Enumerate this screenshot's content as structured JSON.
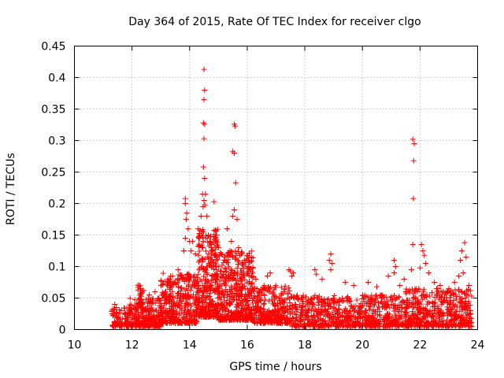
{
  "chart_data": {
    "type": "scatter",
    "title": "Day 364 of 2015, Rate Of TEC Index for receiver clgo",
    "xlabel": "GPS time / hours",
    "ylabel": "ROTI / TECUs",
    "xlim": [
      10,
      24
    ],
    "ylim": [
      0,
      0.45
    ],
    "x_ticks": [
      10,
      12,
      14,
      16,
      18,
      20,
      22,
      24
    ],
    "x_tick_labels": [
      "10",
      "12",
      "14",
      "16",
      "18",
      "20",
      "22",
      "24"
    ],
    "y_ticks": [
      0,
      0.05,
      0.1,
      0.15,
      0.2,
      0.25,
      0.3,
      0.35,
      0.4,
      0.45
    ],
    "y_tick_labels": [
      "0",
      "0.05",
      "0.1",
      "0.15",
      "0.2",
      "0.25",
      "0.3",
      "0.35",
      "0.4",
      "0.45"
    ],
    "grid": true,
    "marker": "+",
    "color": "#ff0000",
    "series": [
      {
        "name": "ROTI",
        "points": [
          [
            14.5,
            0.413
          ],
          [
            14.52,
            0.38
          ],
          [
            14.5,
            0.365
          ],
          [
            14.48,
            0.328
          ],
          [
            14.52,
            0.326
          ],
          [
            14.5,
            0.303
          ],
          [
            14.48,
            0.258
          ],
          [
            14.52,
            0.24
          ],
          [
            14.55,
            0.215
          ],
          [
            14.45,
            0.215
          ],
          [
            14.5,
            0.205
          ],
          [
            14.53,
            0.198
          ],
          [
            14.47,
            0.195
          ],
          [
            15.55,
            0.326
          ],
          [
            15.58,
            0.323
          ],
          [
            15.5,
            0.283
          ],
          [
            15.55,
            0.28
          ],
          [
            15.6,
            0.233
          ],
          [
            15.55,
            0.19
          ],
          [
            15.5,
            0.18
          ],
          [
            15.3,
            0.16
          ],
          [
            15.65,
            0.175
          ],
          [
            14.85,
            0.203
          ],
          [
            13.85,
            0.208
          ],
          [
            13.85,
            0.2
          ],
          [
            13.9,
            0.185
          ],
          [
            13.88,
            0.175
          ],
          [
            13.95,
            0.16
          ],
          [
            13.85,
            0.145
          ],
          [
            13.8,
            0.125
          ],
          [
            14.0,
            0.14
          ],
          [
            14.1,
            0.14
          ],
          [
            14.05,
            0.125
          ],
          [
            14.2,
            0.12
          ],
          [
            14.3,
            0.16
          ],
          [
            14.35,
            0.15
          ],
          [
            14.4,
            0.18
          ],
          [
            14.6,
            0.18
          ],
          [
            14.65,
            0.15
          ],
          [
            14.7,
            0.14
          ],
          [
            14.75,
            0.13
          ],
          [
            14.8,
            0.125
          ],
          [
            14.9,
            0.14
          ],
          [
            15.0,
            0.13
          ],
          [
            15.1,
            0.12
          ],
          [
            15.2,
            0.11
          ],
          [
            15.4,
            0.125
          ],
          [
            15.45,
            0.14
          ],
          [
            15.7,
            0.13
          ],
          [
            15.8,
            0.12
          ],
          [
            15.9,
            0.11
          ],
          [
            16.1,
            0.095
          ],
          [
            16.15,
            0.085
          ],
          [
            16.3,
            0.08
          ],
          [
            16.7,
            0.085
          ],
          [
            16.8,
            0.09
          ],
          [
            17.45,
            0.095
          ],
          [
            17.5,
            0.093
          ],
          [
            17.6,
            0.09
          ],
          [
            17.55,
            0.085
          ],
          [
            18.35,
            0.095
          ],
          [
            18.9,
            0.12
          ],
          [
            18.85,
            0.11
          ],
          [
            18.95,
            0.105
          ],
          [
            18.9,
            0.095
          ],
          [
            18.4,
            0.088
          ],
          [
            18.6,
            0.08
          ],
          [
            19.4,
            0.075
          ],
          [
            19.7,
            0.07
          ],
          [
            20.2,
            0.075
          ],
          [
            20.5,
            0.068
          ],
          [
            20.9,
            0.085
          ],
          [
            21.1,
            0.11
          ],
          [
            21.15,
            0.1
          ],
          [
            21.1,
            0.09
          ],
          [
            21.3,
            0.07
          ],
          [
            21.45,
            0.08
          ],
          [
            21.7,
            0.095
          ],
          [
            21.75,
            0.302
          ],
          [
            21.8,
            0.295
          ],
          [
            21.78,
            0.268
          ],
          [
            21.77,
            0.208
          ],
          [
            21.75,
            0.135
          ],
          [
            22.05,
            0.135
          ],
          [
            22.1,
            0.125
          ],
          [
            22.15,
            0.118
          ],
          [
            22.2,
            0.105
          ],
          [
            22.0,
            0.098
          ],
          [
            22.3,
            0.09
          ],
          [
            22.5,
            0.075
          ],
          [
            22.7,
            0.07
          ],
          [
            23.0,
            0.065
          ],
          [
            23.2,
            0.075
          ],
          [
            23.35,
            0.085
          ],
          [
            23.4,
            0.11
          ],
          [
            23.45,
            0.125
          ],
          [
            23.55,
            0.138
          ],
          [
            23.6,
            0.115
          ],
          [
            23.5,
            0.09
          ],
          [
            23.7,
            0.07
          ],
          [
            11.4,
            0.04
          ],
          [
            11.45,
            0.035
          ],
          [
            12.25,
            0.07
          ],
          [
            12.3,
            0.065
          ],
          [
            12.35,
            0.06
          ],
          [
            12.6,
            0.055
          ],
          [
            12.8,
            0.06
          ],
          [
            13.1,
            0.055
          ],
          [
            13.3,
            0.07
          ],
          [
            13.5,
            0.075
          ],
          [
            13.6,
            0.095
          ],
          [
            13.7,
            0.085
          ]
        ]
      }
    ],
    "bulk_clusters": [
      {
        "x_range": [
          11.3,
          11.9
        ],
        "y_range": [
          0.005,
          0.035
        ],
        "count": 90
      },
      {
        "x_range": [
          11.9,
          13.0
        ],
        "y_range": [
          0.005,
          0.05
        ],
        "count": 260
      },
      {
        "x_range": [
          12.2,
          12.4
        ],
        "y_range": [
          0.04,
          0.072
        ],
        "count": 25
      },
      {
        "x_range": [
          13.0,
          14.3
        ],
        "y_range": [
          0.01,
          0.09
        ],
        "count": 380
      },
      {
        "x_range": [
          14.3,
          15.0
        ],
        "y_range": [
          0.02,
          0.16
        ],
        "count": 320
      },
      {
        "x_range": [
          15.0,
          16.2
        ],
        "y_range": [
          0.015,
          0.125
        ],
        "count": 460
      },
      {
        "x_range": [
          16.2,
          17.5
        ],
        "y_range": [
          0.01,
          0.07
        ],
        "count": 300
      },
      {
        "x_range": [
          17.5,
          19.5
        ],
        "y_range": [
          0.005,
          0.055
        ],
        "count": 360
      },
      {
        "x_range": [
          19.5,
          21.5
        ],
        "y_range": [
          0.005,
          0.055
        ],
        "count": 380
      },
      {
        "x_range": [
          21.5,
          23.8
        ],
        "y_range": [
          0.005,
          0.065
        ],
        "count": 520
      }
    ]
  }
}
